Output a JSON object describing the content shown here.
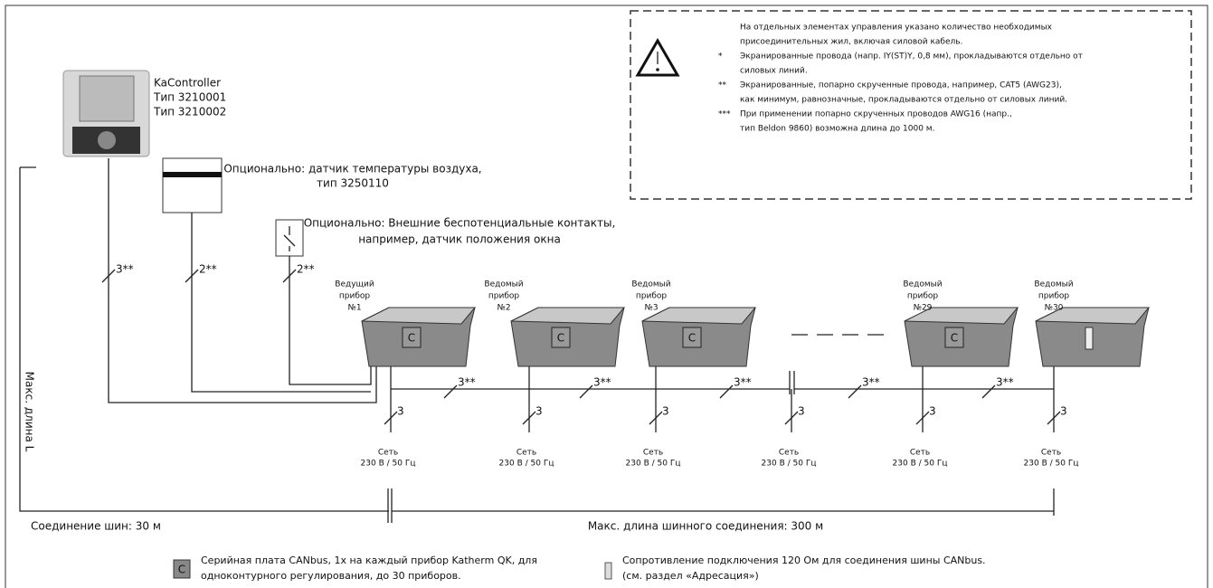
{
  "note": {
    "intro": [
      "На отдельных элементах управления  указано количество необходимых",
      "присоединительных жил, включая силовой кабель."
    ],
    "items": [
      {
        "marker": "*",
        "lines": [
          "Экранированные провода (напр. IY(ST)Y, 0,8 мм), прокладываются отдельно от",
          "силовых линий."
        ]
      },
      {
        "marker": "**",
        "lines": [
          "Экранированные, попарно скрученные провода, например, CAT5 (AWG23),",
          "как минимум, равнозначные, прокладываются отдельно от силовых линий."
        ]
      },
      {
        "marker": "***",
        "lines": [
          "При применении попарно скрученных проводов AWG16 (напр.,",
          "тип Beldon 9860) возможна длина до 1000 м."
        ]
      }
    ]
  },
  "controller": {
    "name": "KaController",
    "types": [
      "Тип 3210001",
      "Тип 3210002"
    ]
  },
  "sensor": {
    "lines": [
      "Опционально: датчик температуры воздуха,",
      "тип 3250110"
    ]
  },
  "contacts": {
    "lines": [
      "Опционально: Внешние беспотенциальные контакты,",
      "например, датчик положения окна"
    ]
  },
  "wires": {
    "controller": "3**",
    "sensor": "2**",
    "contacts": "2**",
    "bus": [
      "3**",
      "3**",
      "3**",
      "3**",
      "3**"
    ],
    "power": [
      "3",
      "3",
      "3",
      "3",
      "3",
      "3"
    ]
  },
  "devices": [
    {
      "lines": [
        "Ведущий",
        "прибор",
        "№1"
      ]
    },
    {
      "lines": [
        "Ведомый",
        "прибор",
        "№2"
      ]
    },
    {
      "lines": [
        "Ведомый",
        "прибор",
        "№3"
      ]
    },
    {
      "lines": [
        "Ведомый",
        "прибор",
        "№29"
      ]
    },
    {
      "lines": [
        "Ведомый",
        "прибор",
        "№30"
      ]
    }
  ],
  "mains": [
    {
      "lines": [
        "Сеть",
        "230 В / 50 Гц"
      ]
    },
    {
      "lines": [
        "Сеть",
        "230 В / 50 Гц"
      ]
    },
    {
      "lines": [
        "Сеть",
        "230 В / 50 Гц"
      ]
    },
    {
      "lines": [
        "Сеть",
        "230 В / 50 Гц"
      ]
    },
    {
      "lines": [
        "Сеть",
        "230 В / 50 Гц"
      ]
    },
    {
      "lines": [
        "Сеть",
        "230 В / 50 Гц"
      ]
    }
  ],
  "dimensions": {
    "max_length": "Макс. длина L",
    "bus_short": "Соединение шин: 30 м",
    "bus_long": "Макс. длина  шинного соединения: 300 м"
  },
  "legend": {
    "card_icon": "C",
    "card": [
      "Серийная плата CANbus, 1х на каждый прибор Katherm QK, для",
      "одноконтурного регулирования, до 30 приборов."
    ],
    "resistor": [
      "Сопротивление подключения 120 Ом для соединения шины CANbus.",
      "(см. раздел «Адресация»)"
    ]
  }
}
